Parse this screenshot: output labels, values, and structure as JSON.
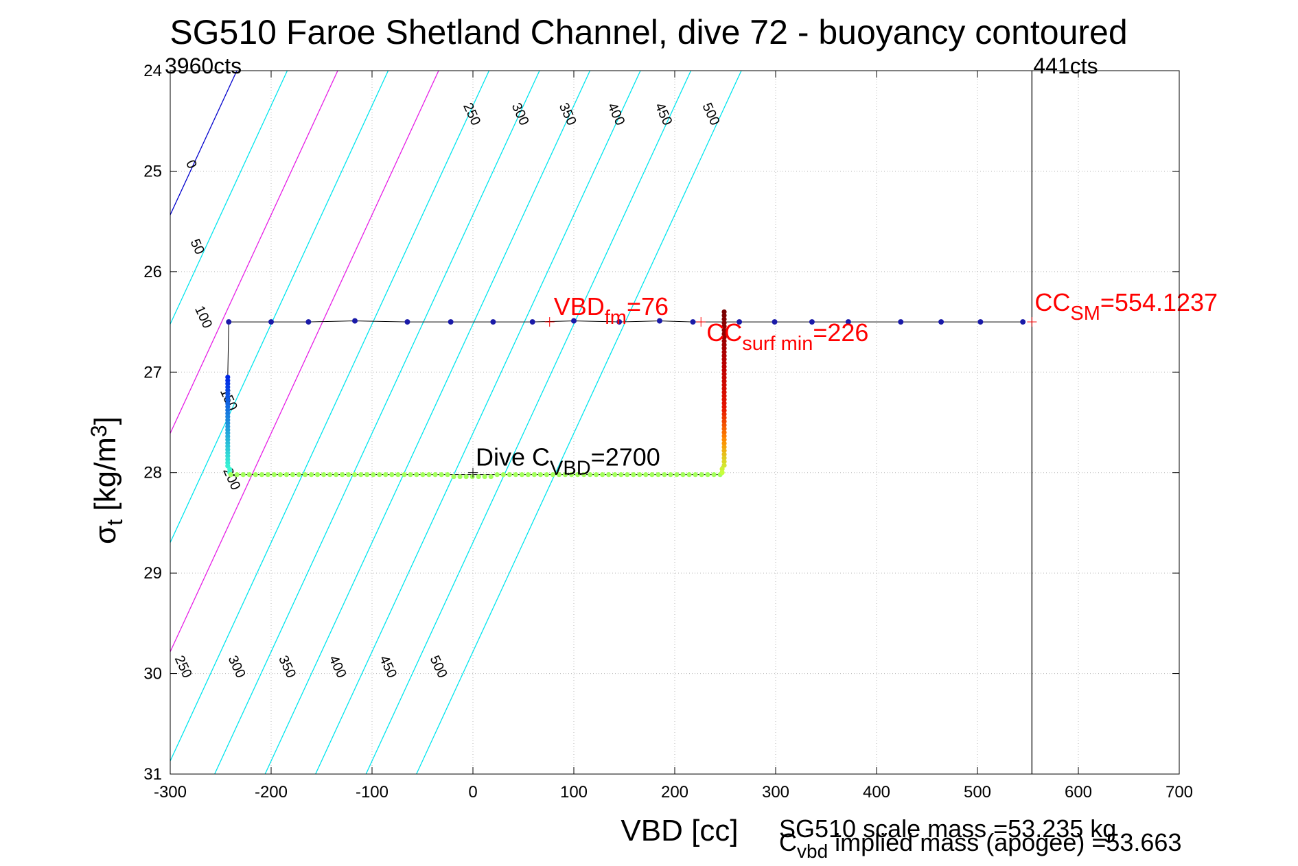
{
  "chart_data": {
    "type": "scatter",
    "title": "SG510 Faroe Shetland Channel, dive 72 - buoyancy contoured",
    "xlabel": "VBD [cc]",
    "ylabel": {
      "base": "σ",
      "sub": "t",
      "pre": " [kg/m",
      "sup": "3",
      "post": "]"
    },
    "xlim": [
      -300,
      700
    ],
    "ylim": [
      24,
      31
    ],
    "y_reversed": true,
    "grid": true,
    "x_ticks": [
      -300,
      -200,
      -100,
      0,
      100,
      200,
      300,
      400,
      500,
      600,
      700
    ],
    "y_ticks": [
      24,
      25,
      26,
      27,
      28,
      29,
      30,
      31
    ],
    "contour_lines": [
      {
        "level": 0,
        "color": "#0000cd",
        "x_at_top": -234,
        "label": "0"
      },
      {
        "level": 50,
        "color": "#00e5ee",
        "x_at_top": -184,
        "label": "50"
      },
      {
        "level": 100,
        "color": "#e61fe6",
        "x_at_top": -134,
        "label": "100"
      },
      {
        "level": 150,
        "color": "#00e5ee",
        "x_at_top": -84,
        "label": "150"
      },
      {
        "level": 200,
        "color": "#e61fe6",
        "x_at_top": -34,
        "label": "200"
      },
      {
        "level": 250,
        "color": "#00e5ee",
        "x_at_top": 16,
        "label": "250"
      },
      {
        "level": 300,
        "color": "#00e5ee",
        "x_at_top": 66,
        "label": "300"
      },
      {
        "level": 350,
        "color": "#00e5ee",
        "x_at_top": 116,
        "label": "350"
      },
      {
        "level": 400,
        "color": "#00e5ee",
        "x_at_top": 166,
        "label": "400"
      },
      {
        "level": 450,
        "color": "#00e5ee",
        "x_at_top": 216,
        "label": "450"
      },
      {
        "level": 500,
        "color": "#00e5ee",
        "x_at_top": 266,
        "label": "500"
      }
    ],
    "contour_slope_cc_per_sigma": 46,
    "contour_label_positions": [
      {
        "label": "0",
        "x": -283,
        "y": 24.95
      },
      {
        "label": "50",
        "x": -277,
        "y": 25.77
      },
      {
        "label": "100",
        "x": -271,
        "y": 26.47
      },
      {
        "label": "150",
        "x": -246,
        "y": 27.29
      },
      {
        "label": "200",
        "x": -243,
        "y": 28.08
      },
      {
        "label": "250",
        "x": -291,
        "y": 29.95
      },
      {
        "label": "300",
        "x": -238,
        "y": 29.95
      },
      {
        "label": "350",
        "x": -188,
        "y": 29.95
      },
      {
        "label": "400",
        "x": -138,
        "y": 29.95
      },
      {
        "label": "450",
        "x": -88,
        "y": 29.95
      },
      {
        "label": "500",
        "x": -38,
        "y": 29.95
      },
      {
        "label": "250",
        "x": -5,
        "y": 24.45
      },
      {
        "label": "300",
        "x": 43,
        "y": 24.45
      },
      {
        "label": "350",
        "x": 90,
        "y": 24.45
      },
      {
        "label": "400",
        "x": 138,
        "y": 24.45
      },
      {
        "label": "450",
        "x": 185,
        "y": 24.45
      },
      {
        "label": "500",
        "x": 232,
        "y": 24.45
      }
    ],
    "vertical_line": {
      "x": 554,
      "top_label": "441cts"
    },
    "left_label": "3960cts",
    "tracks": [
      {
        "name": "surface",
        "color": "#1a1aa8",
        "points": [
          [
            -242,
            26.5
          ],
          [
            -200,
            26.5
          ],
          [
            -163,
            26.5
          ],
          [
            -117,
            26.49
          ],
          [
            -65,
            26.5
          ],
          [
            -22,
            26.5
          ],
          [
            20,
            26.5
          ],
          [
            59,
            26.5
          ],
          [
            100,
            26.49
          ],
          [
            145,
            26.5
          ],
          [
            185,
            26.49
          ],
          [
            218,
            26.5
          ],
          [
            264,
            26.5
          ],
          [
            299,
            26.5
          ],
          [
            336,
            26.5
          ],
          [
            372,
            26.5
          ],
          [
            424,
            26.5
          ],
          [
            464,
            26.5
          ],
          [
            503,
            26.5
          ],
          [
            545,
            26.5
          ]
        ]
      },
      {
        "name": "left-descent",
        "points": [
          [
            -243,
            27.05
          ],
          [
            -243,
            27.15
          ],
          [
            -243,
            27.3
          ],
          [
            -243,
            27.45
          ],
          [
            -243,
            27.6
          ],
          [
            -243,
            27.75
          ],
          [
            -242,
            27.9
          ],
          [
            -240,
            28.0
          ]
        ]
      },
      {
        "name": "bottom",
        "color": "#a3ff5c",
        "x_from": -240,
        "x_to": 245,
        "y": 28.02
      },
      {
        "name": "right-ascent",
        "points": [
          [
            248,
            26.4
          ],
          [
            248,
            26.55
          ],
          [
            248,
            26.7
          ],
          [
            249,
            26.85
          ],
          [
            249,
            27.0
          ],
          [
            249,
            27.15
          ],
          [
            249,
            27.3
          ],
          [
            249,
            27.45
          ],
          [
            249,
            27.6
          ],
          [
            249,
            27.75
          ],
          [
            248,
            27.9
          ],
          [
            245,
            28.0
          ]
        ]
      }
    ],
    "annotations": [
      {
        "name": "vbd-fm",
        "main": "VBD",
        "sub": "fm",
        "suffix": "=76",
        "x": 76,
        "y": 26.5,
        "color": "#ff0000"
      },
      {
        "name": "cc-surf-min",
        "main": "CC",
        "sub": "surf min",
        "suffix": "=226",
        "x": 226,
        "y": 26.5,
        "color": "#ff0000"
      },
      {
        "name": "cc-sm",
        "main": "CC",
        "sub": "SM",
        "suffix": "=554.1237",
        "x": 554,
        "y": 26.5,
        "color": "#ff0000"
      },
      {
        "name": "dive-c-vbd",
        "main": "Dive C",
        "sub": "VBD",
        "suffix": "=2700",
        "x": 0,
        "y": 28.0,
        "color": "#000000"
      }
    ],
    "footer": {
      "scale_mass": "SG510 scale mass =53.235 kg",
      "implied_main": "C",
      "implied_sub": "vbd",
      "implied_suffix": " implied mass (apogee) =53.663"
    }
  }
}
